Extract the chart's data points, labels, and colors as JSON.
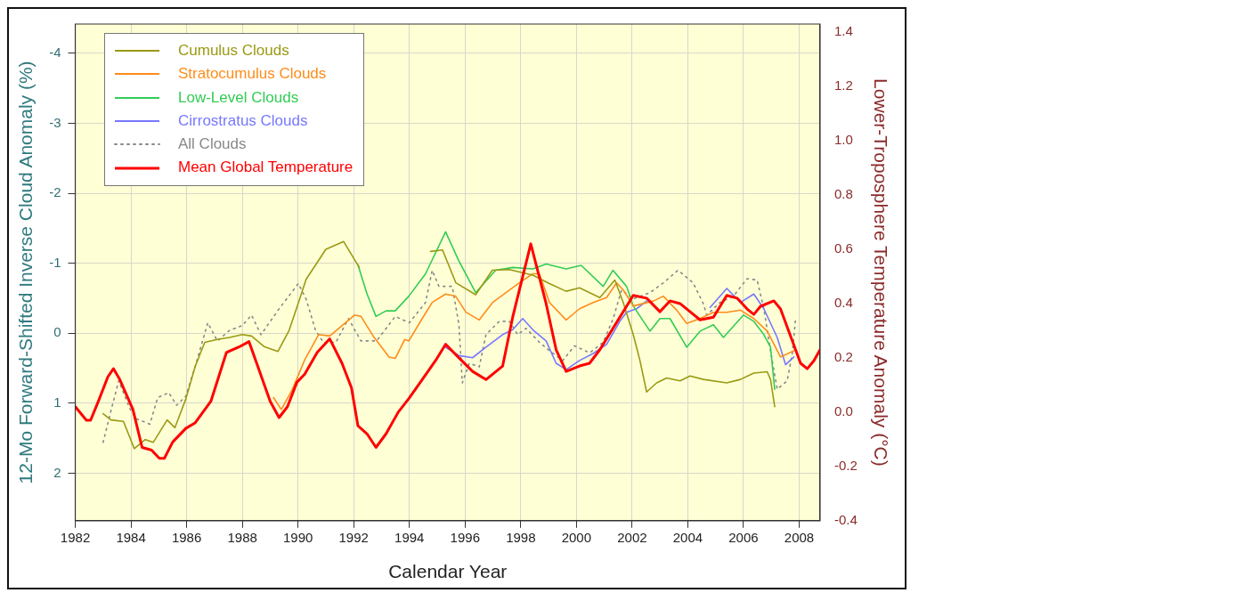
{
  "chart_data": {
    "type": "line",
    "xlabel": "Calendar Year",
    "ylabel": "12-Mo Forward-Shifted Inverse Cloud Anomaly (%)",
    "y2label": "Lower-Troposphere Temperature Anomaly (°C)",
    "xlim": [
      1982,
      2008.75
    ],
    "xticks": [
      1982,
      1984,
      1986,
      1988,
      1990,
      1992,
      1994,
      1996,
      1998,
      2000,
      2002,
      2004,
      2006,
      2008
    ],
    "ylim": [
      2.68,
      -4.42
    ],
    "yticks": [
      -4,
      -3,
      -2,
      -1,
      0,
      1,
      2
    ],
    "y2lim": [
      -0.4,
      1.43
    ],
    "y2ticks": [
      {
        "value": -0.4,
        "label": "-0.4"
      },
      {
        "value": -0.2,
        "label": "-0.2"
      },
      {
        "value": 0,
        "label": "0.0"
      },
      {
        "value": 0.2,
        "label": "0.2"
      },
      {
        "value": 0.4,
        "label": "0.4"
      },
      {
        "value": 0.6,
        "label": "0.6"
      },
      {
        "value": 0.8,
        "label": "0.8"
      },
      {
        "value": 1,
        "label": "1.0"
      },
      {
        "value": 1.2,
        "label": "1.2"
      },
      {
        "value": 1.4,
        "label": "1.4"
      }
    ],
    "grid": true,
    "legend": "top left",
    "marker": "none",
    "series": [
      {
        "name": "Cumulus Clouds",
        "color": "#9a9a14",
        "x": [
          1983.0,
          1983.28,
          1983.73,
          1984.12,
          1984.51,
          1984.8,
          1985.3,
          1985.58,
          1985.97,
          1986.31,
          1986.65,
          1987.1,
          1987.54,
          1988.0,
          1988.33,
          1988.78,
          1989.28,
          1989.68,
          1990.01,
          1990.29,
          1991.0,
          1991.64,
          1992.2,
          1993.5,
          1994.76,
          1995.19,
          1995.67,
          1996.38,
          1996.98,
          1997.59,
          1998.43,
          1999.03,
          1999.63,
          2000.11,
          2000.84,
          2001.38,
          2001.68,
          2002.04,
          2002.28,
          2002.52,
          2002.88,
          2003.24,
          2003.72,
          2004.08,
          2004.56,
          2005.4,
          2005.89,
          2006.37,
          2006.85,
          2006.97,
          2007.12
        ],
        "values": [
          1.15,
          1.24,
          1.26,
          1.65,
          1.52,
          1.56,
          1.24,
          1.35,
          0.94,
          0.47,
          0.13,
          0.09,
          0.06,
          0.02,
          0.04,
          0.19,
          0.26,
          -0.04,
          -0.43,
          -0.77,
          -1.2,
          -1.31,
          -0.94,
          null,
          -1.17,
          -1.19,
          -0.72,
          -0.55,
          -0.9,
          -0.91,
          -0.83,
          -0.71,
          -0.6,
          -0.65,
          -0.51,
          -0.76,
          -0.44,
          0.02,
          0.39,
          0.84,
          0.71,
          0.64,
          0.68,
          0.61,
          0.66,
          0.71,
          0.66,
          0.57,
          0.55,
          0.66,
          1.05
        ]
      },
      {
        "name": "Stratocumulus Clouds",
        "color": "#ff8c1a",
        "x": [
          1989.12,
          1989.4,
          1989.79,
          1990.24,
          1990.74,
          1991.14,
          1991.64,
          1992.03,
          1992.26,
          1992.7,
          1993.27,
          1993.49,
          1993.83,
          1993.98,
          1994.46,
          1994.82,
          1995.3,
          1995.66,
          1996.03,
          1996.51,
          1996.99,
          1997.47,
          1997.95,
          1998.43,
          1998.67,
          1999.03,
          1999.63,
          2000.11,
          2000.6,
          2001.08,
          2001.44,
          2001.68,
          2002.04,
          2002.76,
          2003.12,
          2003.6,
          2003.96,
          2004.44,
          2004.92,
          2005.4,
          2005.89,
          2006.37,
          2006.85,
          2007.33,
          2007.81
        ],
        "values": [
          0.92,
          1.09,
          0.81,
          0.38,
          0.02,
          0.04,
          -0.13,
          -0.26,
          -0.24,
          0.04,
          0.34,
          0.36,
          0.09,
          0.11,
          -0.21,
          -0.44,
          -0.56,
          -0.53,
          -0.3,
          -0.19,
          -0.44,
          -0.58,
          -0.72,
          -0.85,
          -0.85,
          -0.44,
          -0.19,
          -0.35,
          -0.44,
          -0.51,
          -0.72,
          -0.62,
          -0.39,
          -0.46,
          -0.53,
          -0.33,
          -0.14,
          -0.21,
          -0.3,
          -0.3,
          -0.33,
          -0.21,
          -0.03,
          0.34,
          0.25
        ]
      },
      {
        "name": "Low-Level Clouds",
        "color": "#33cc55",
        "x": [
          1992.15,
          1992.48,
          1992.8,
          1993.16,
          1993.49,
          1993.98,
          1994.58,
          1995.3,
          1995.77,
          1996.38,
          1997.1,
          1997.71,
          1998.43,
          1998.91,
          1999.63,
          2000.17,
          2000.96,
          2001.31,
          2001.8,
          2002.04,
          2002.64,
          2003.0,
          2003.36,
          2003.96,
          2004.44,
          2004.92,
          2005.28,
          2006.0,
          2006.37,
          2006.73,
          2006.97,
          2007.12
        ],
        "values": [
          -0.98,
          -0.56,
          -0.24,
          -0.32,
          -0.32,
          -0.53,
          -0.85,
          -1.45,
          -1.04,
          -0.58,
          -0.9,
          -0.94,
          -0.92,
          -0.99,
          -0.92,
          -0.97,
          -0.67,
          -0.9,
          -0.67,
          -0.39,
          -0.03,
          -0.21,
          -0.21,
          0.2,
          -0.03,
          -0.12,
          0.06,
          -0.26,
          -0.17,
          0.02,
          0.2,
          0.8
        ]
      },
      {
        "name": "Cirrostratus Clouds",
        "color": "#7777ff",
        "x": [
          1995.3,
          1995.78,
          1996.27,
          1996.75,
          1997.35,
          1997.71,
          1998.07,
          1998.43,
          1998.91,
          1999.27,
          1999.63,
          2000.11,
          2000.6,
          2001.08,
          2001.56,
          2001.8,
          2002.16,
          2002.52,
          2003.6,
          2004.8,
          2005.4,
          2005.89,
          2006.37,
          2006.73,
          2007.21,
          2007.51,
          2007.81
        ],
        "values": [
          0.2,
          0.32,
          0.35,
          0.2,
          0.02,
          -0.05,
          -0.21,
          -0.05,
          0.11,
          0.43,
          0.52,
          0.39,
          0.29,
          0.16,
          -0.17,
          -0.3,
          -0.35,
          -0.46,
          null,
          -0.37,
          -0.64,
          -0.44,
          -0.56,
          -0.35,
          0.06,
          0.45,
          0.34
        ]
      },
      {
        "name": "All Clouds",
        "color": "#888888",
        "line_style": "dotted",
        "x": [
          1983.0,
          1983.28,
          1983.56,
          1983.95,
          1984.18,
          1984.68,
          1984.96,
          1985.36,
          1985.64,
          1985.97,
          1986.31,
          1986.76,
          1987.1,
          1987.54,
          1988.0,
          1988.33,
          1988.67,
          1989.34,
          1990.01,
          1990.29,
          1990.63,
          1990.91,
          1991.36,
          1991.81,
          1992.26,
          1992.82,
          1993.49,
          1994.0,
          1994.58,
          1994.82,
          1995.06,
          1995.54,
          1995.78,
          1995.9,
          1996.15,
          1996.51,
          1996.75,
          1997.23,
          1997.59,
          1997.89,
          1998.19,
          1998.67,
          1999.03,
          1999.51,
          1999.93,
          2000.47,
          2000.96,
          2001.32,
          2001.62,
          2002.04,
          2002.64,
          2003.12,
          2003.65,
          2004.19,
          2004.56,
          2004.68,
          2005.16,
          2005.64,
          2006.13,
          2006.49,
          2006.73,
          2006.97,
          2007.21,
          2007.57,
          2007.75,
          2007.87
        ],
        "values": [
          1.56,
          1.11,
          0.68,
          1.07,
          1.22,
          1.3,
          0.92,
          0.85,
          1.03,
          0.9,
          0.47,
          -0.15,
          0.11,
          -0.04,
          -0.11,
          -0.26,
          0.02,
          -0.36,
          -0.71,
          -0.49,
          -0.04,
          0.13,
          0.13,
          -0.21,
          0.11,
          0.11,
          -0.24,
          -0.15,
          -0.44,
          -0.9,
          -0.67,
          -0.67,
          -0.12,
          0.71,
          0.43,
          0.48,
          0.02,
          -0.17,
          -0.17,
          0.02,
          -0.07,
          0.13,
          0.25,
          0.39,
          0.18,
          0.28,
          0.13,
          -0.21,
          -0.62,
          -0.49,
          -0.58,
          -0.72,
          -0.9,
          -0.72,
          -0.42,
          -0.26,
          -0.44,
          -0.53,
          -0.78,
          -0.76,
          -0.35,
          0.25,
          0.8,
          0.68,
          0.29,
          -0.21
        ]
      },
      {
        "name": "Mean Global Temperature",
        "color": "#ff0000",
        "axis": "y2",
        "x": [
          1982.0,
          1982.4,
          1982.55,
          1982.83,
          1983.17,
          1983.37,
          1983.6,
          1984.07,
          1984.4,
          1984.74,
          1985.02,
          1985.2,
          1985.5,
          1985.97,
          1986.3,
          1986.87,
          1987.43,
          1987.88,
          1988.24,
          1988.55,
          1989.0,
          1989.32,
          1989.62,
          1989.96,
          1990.24,
          1990.69,
          1991.14,
          1991.58,
          1991.92,
          1992.15,
          1992.48,
          1992.8,
          1993.16,
          1993.6,
          1993.98,
          1994.46,
          1994.94,
          1995.3,
          1995.78,
          1996.27,
          1996.75,
          1997.35,
          1997.71,
          1998.36,
          1998.91,
          1999.27,
          1999.63,
          2000.11,
          2000.47,
          2000.84,
          2001.32,
          2001.8,
          2002.04,
          2002.52,
          2003.0,
          2003.36,
          2003.72,
          2004.2,
          2004.44,
          2004.92,
          2005.4,
          2005.77,
          2006.13,
          2006.37,
          2006.61,
          2007.09,
          2007.33,
          2007.69,
          2008.05,
          2008.29,
          2008.53,
          2008.75
        ],
        "values": [
          0.02,
          -0.03,
          -0.03,
          0.04,
          0.13,
          0.16,
          0.12,
          0.01,
          -0.13,
          -0.14,
          -0.17,
          -0.17,
          -0.11,
          -0.06,
          -0.04,
          0.04,
          0.22,
          0.24,
          0.26,
          0.17,
          0.04,
          -0.02,
          0.02,
          0.11,
          0.14,
          0.22,
          0.27,
          0.18,
          0.09,
          -0.05,
          -0.08,
          -0.13,
          -0.08,
          0.0,
          0.05,
          0.12,
          0.19,
          0.25,
          0.2,
          0.15,
          0.12,
          0.17,
          0.35,
          0.62,
          0.4,
          0.23,
          0.15,
          0.17,
          0.18,
          0.23,
          0.31,
          0.39,
          0.43,
          0.42,
          0.37,
          0.41,
          0.4,
          0.36,
          0.34,
          0.35,
          0.43,
          0.42,
          0.38,
          0.36,
          0.39,
          0.41,
          0.38,
          0.28,
          0.18,
          0.16,
          0.19,
          0.23
        ]
      }
    ]
  }
}
